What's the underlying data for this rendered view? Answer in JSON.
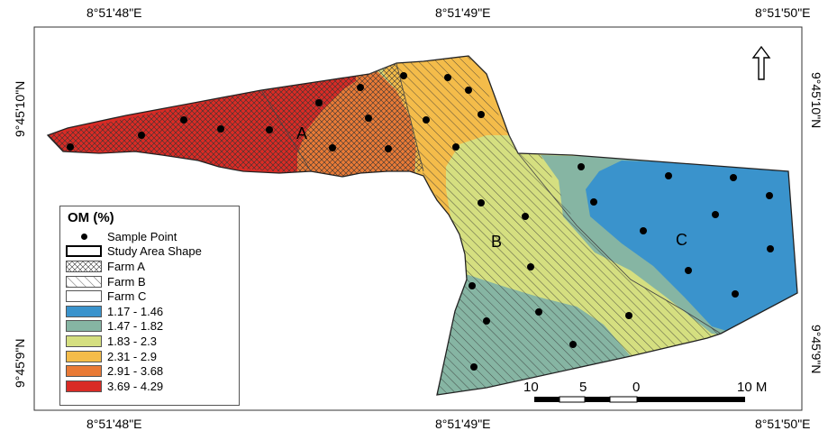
{
  "coordinates": {
    "top": [
      "8°51'48\"E",
      "8°51'49\"E",
      "8°51'50\"E"
    ],
    "bottom": [
      "8°51'48\"E",
      "8°51'49\"E",
      "8°51'50\"E"
    ],
    "left": [
      "9°45'10\"N",
      "9°45'9\"N"
    ],
    "right": [
      "9°45'10\"N",
      "9°45'9\"N"
    ]
  },
  "legend": {
    "title": "OM (%)",
    "items": [
      {
        "label": "Sample Point",
        "kind": "point"
      },
      {
        "label": "Study Area Shape",
        "kind": "outline"
      },
      {
        "label": "Farm A",
        "kind": "crosshatch"
      },
      {
        "label": "Farm B",
        "kind": "diagonal"
      },
      {
        "label": "Farm C",
        "kind": "blank"
      },
      {
        "label": "1.17 - 1.46",
        "kind": "fill",
        "color": "#3a93cc"
      },
      {
        "label": "1.47 - 1.82",
        "kind": "fill",
        "color": "#86b5a3"
      },
      {
        "label": "1.83 - 2.3",
        "kind": "fill",
        "color": "#d5df80"
      },
      {
        "label": "2.31 - 2.9",
        "kind": "fill",
        "color": "#f4bc4a"
      },
      {
        "label": "2.91 - 3.68",
        "kind": "fill",
        "color": "#e97a36"
      },
      {
        "label": "3.69 - 4.29",
        "kind": "fill",
        "color": "#d92b25"
      }
    ]
  },
  "zones": {
    "a": "A",
    "b": "B",
    "c": "C"
  },
  "scale_bar": {
    "labels": [
      "10",
      "5",
      "0",
      "10 M"
    ]
  },
  "north_arrow": "north-arrow-icon"
}
